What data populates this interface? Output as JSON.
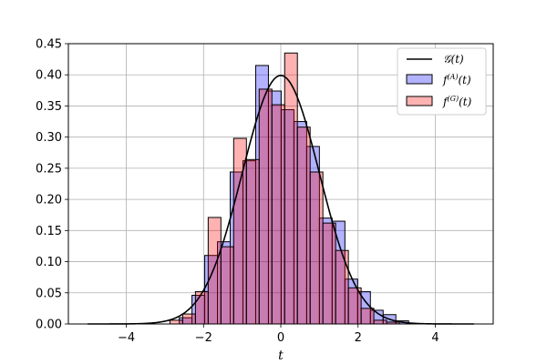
{
  "chart_data": {
    "type": "histogram",
    "xlabel": "t",
    "ylabel": "",
    "xlim": [
      -5.5,
      5.5
    ],
    "ylim": [
      0.0,
      0.45
    ],
    "xticks": [
      -4,
      -2,
      0,
      2,
      4
    ],
    "xtick_labels": [
      "−4",
      "−2",
      "0",
      "2",
      "4"
    ],
    "yticks": [
      0.0,
      0.05,
      0.1,
      0.15,
      0.2,
      0.25,
      0.3,
      0.35,
      0.4,
      0.45
    ],
    "ytick_labels": [
      "0.00",
      "0.05",
      "0.10",
      "0.15",
      "0.20",
      "0.25",
      "0.30",
      "0.35",
      "0.40",
      "0.45"
    ],
    "grid": true,
    "legend_position": "top-right",
    "legend": {
      "curve_label": "𝒢(t)",
      "series_a_label": "f",
      "series_a_sup": "(A)",
      "series_a_arg": "(t)",
      "series_g_label": "f",
      "series_g_sup": "(G)",
      "series_g_arg": "(t)"
    },
    "series": [
      {
        "key": "A",
        "color": "#0000ff",
        "bin_width": 0.33,
        "bins": [
          {
            "x0": -2.63,
            "value": 0.01
          },
          {
            "x0": -2.3,
            "value": 0.046
          },
          {
            "x0": -1.97,
            "value": 0.11
          },
          {
            "x0": -1.64,
            "value": 0.132
          },
          {
            "x0": -1.31,
            "value": 0.244
          },
          {
            "x0": -0.98,
            "value": 0.262
          },
          {
            "x0": -0.65,
            "value": 0.415
          },
          {
            "x0": -0.32,
            "value": 0.374
          },
          {
            "x0": 0.01,
            "value": 0.344
          },
          {
            "x0": 0.34,
            "value": 0.325
          },
          {
            "x0": 0.67,
            "value": 0.285
          },
          {
            "x0": 1.0,
            "value": 0.17
          },
          {
            "x0": 1.33,
            "value": 0.165
          },
          {
            "x0": 1.66,
            "value": 0.072
          },
          {
            "x0": 1.99,
            "value": 0.052
          },
          {
            "x0": 2.32,
            "value": 0.022
          },
          {
            "x0": 2.65,
            "value": 0.015
          },
          {
            "x0": 2.98,
            "value": 0.005
          }
        ]
      },
      {
        "key": "G",
        "color": "#ff0000",
        "bin_width": 0.33,
        "bins": [
          {
            "x0": -2.87,
            "value": 0.006
          },
          {
            "x0": -2.54,
            "value": 0.016
          },
          {
            "x0": -2.21,
            "value": 0.052
          },
          {
            "x0": -1.88,
            "value": 0.171
          },
          {
            "x0": -1.55,
            "value": 0.124
          },
          {
            "x0": -1.22,
            "value": 0.298
          },
          {
            "x0": -0.89,
            "value": 0.264
          },
          {
            "x0": -0.56,
            "value": 0.377
          },
          {
            "x0": -0.23,
            "value": 0.352
          },
          {
            "x0": 0.1,
            "value": 0.435
          },
          {
            "x0": 0.43,
            "value": 0.316
          },
          {
            "x0": 0.76,
            "value": 0.244
          },
          {
            "x0": 1.09,
            "value": 0.162
          },
          {
            "x0": 1.42,
            "value": 0.118
          },
          {
            "x0": 1.75,
            "value": 0.058
          },
          {
            "x0": 2.08,
            "value": 0.025
          },
          {
            "x0": 2.41,
            "value": 0.006
          },
          {
            "x0": 2.74,
            "value": 0.003
          }
        ]
      }
    ],
    "curve": {
      "name": "𝒢(t)",
      "type": "line",
      "color": "#000000",
      "function": "standard normal pdf",
      "x_range": [
        -5,
        5
      ]
    }
  }
}
